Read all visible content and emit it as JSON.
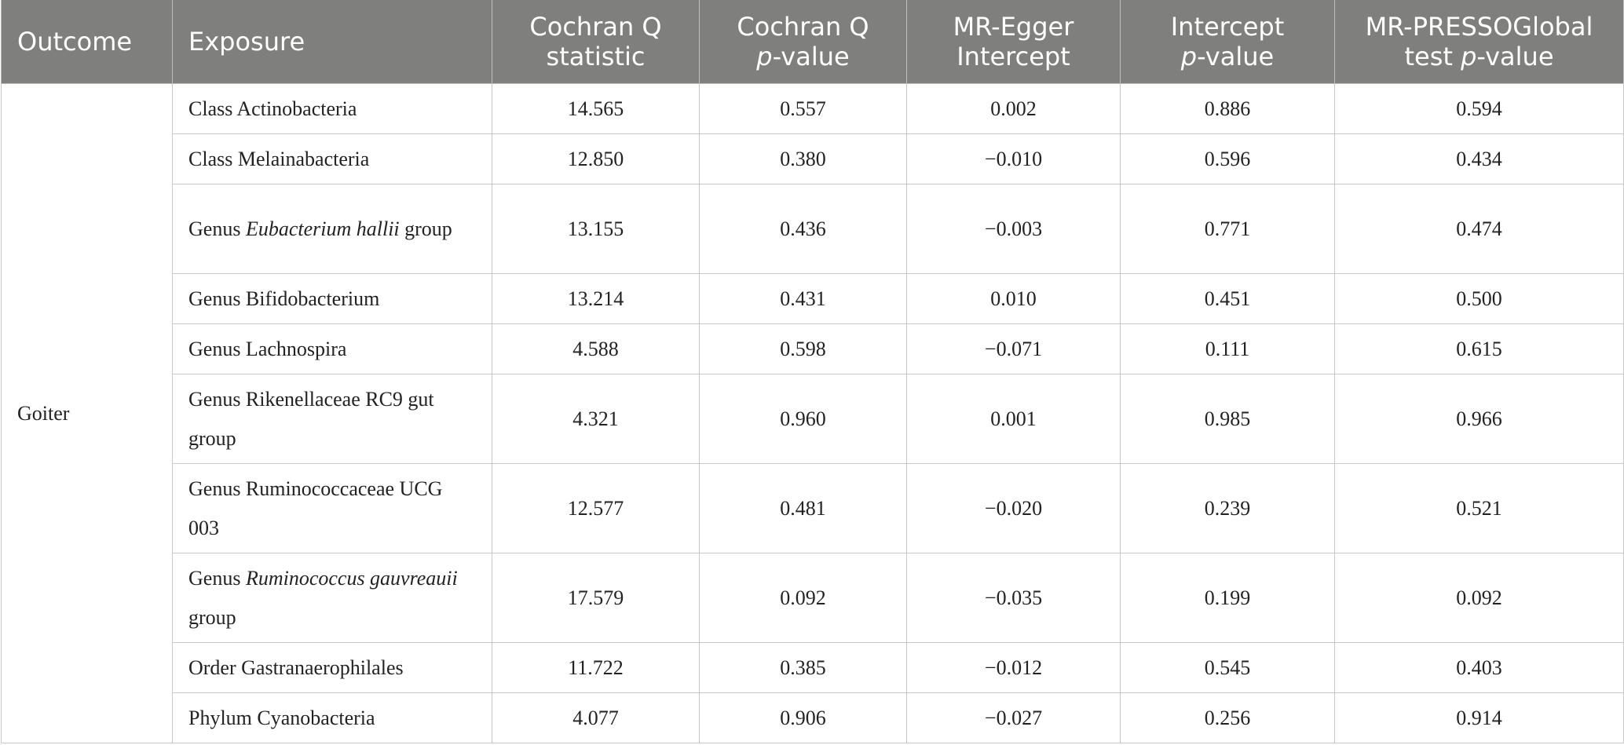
{
  "header": {
    "outcome": "Outcome",
    "exposure": "Exposure",
    "q_stat_1": "Cochran Q",
    "q_stat_2": "statistic",
    "q_p_1": "Cochran Q",
    "q_p_2": "p",
    "q_p_3": "-value",
    "egger_1": "MR-Egger",
    "egger_2": "Intercept",
    "int_p_1": "Intercept",
    "int_p_2": "p",
    "int_p_3": "-value",
    "presso_1": "MR-PRESSOGlobal",
    "presso_2": "test ",
    "presso_3": "p",
    "presso_4": "-value"
  },
  "outcome": "Goiter",
  "rows": [
    {
      "exposure_pre": "Class Actinobacteria",
      "exposure_ital": "",
      "exposure_post": "",
      "q": "14.565",
      "qp": "0.557",
      "egger": "0.002",
      "intp": "0.886",
      "presso": "0.594"
    },
    {
      "exposure_pre": "Class Melainabacteria",
      "exposure_ital": "",
      "exposure_post": "",
      "q": "12.850",
      "qp": "0.380",
      "egger": "−0.010",
      "intp": "0.596",
      "presso": "0.434"
    },
    {
      "exposure_pre": "Genus ",
      "exposure_ital": "Eubacterium hallii",
      "exposure_post": " group",
      "q": "13.155",
      "qp": "0.436",
      "egger": "−0.003",
      "intp": "0.771",
      "presso": "0.474"
    },
    {
      "exposure_pre": "Genus Bifidobacterium",
      "exposure_ital": "",
      "exposure_post": "",
      "q": "13.214",
      "qp": "0.431",
      "egger": "0.010",
      "intp": "0.451",
      "presso": "0.500"
    },
    {
      "exposure_pre": "Genus Lachnospira",
      "exposure_ital": "",
      "exposure_post": "",
      "q": "4.588",
      "qp": "0.598",
      "egger": "−0.071",
      "intp": "0.111",
      "presso": "0.615"
    },
    {
      "exposure_pre": "Genus Rikenellaceae RC9 gut group",
      "exposure_ital": "",
      "exposure_post": "",
      "q": "4.321",
      "qp": "0.960",
      "egger": "0.001",
      "intp": "0.985",
      "presso": "0.966"
    },
    {
      "exposure_pre": "Genus Ruminococcaceae UCG 003",
      "exposure_ital": "",
      "exposure_post": "",
      "q": "12.577",
      "qp": "0.481",
      "egger": "−0.020",
      "intp": "0.239",
      "presso": "0.521"
    },
    {
      "exposure_pre": "Genus ",
      "exposure_ital": "Ruminococcus gauvreauii",
      "exposure_post": " group",
      "q": "17.579",
      "qp": "0.092",
      "egger": "−0.035",
      "intp": "0.199",
      "presso": "0.092"
    },
    {
      "exposure_pre": "Order Gastranaerophilales",
      "exposure_ital": "",
      "exposure_post": "",
      "q": "11.722",
      "qp": "0.385",
      "egger": "−0.012",
      "intp": "0.545",
      "presso": "0.403"
    },
    {
      "exposure_pre": "Phylum Cyanobacteria",
      "exposure_ital": "",
      "exposure_post": "",
      "q": "4.077",
      "qp": "0.906",
      "egger": "−0.027",
      "intp": "0.256",
      "presso": "0.914"
    }
  ]
}
